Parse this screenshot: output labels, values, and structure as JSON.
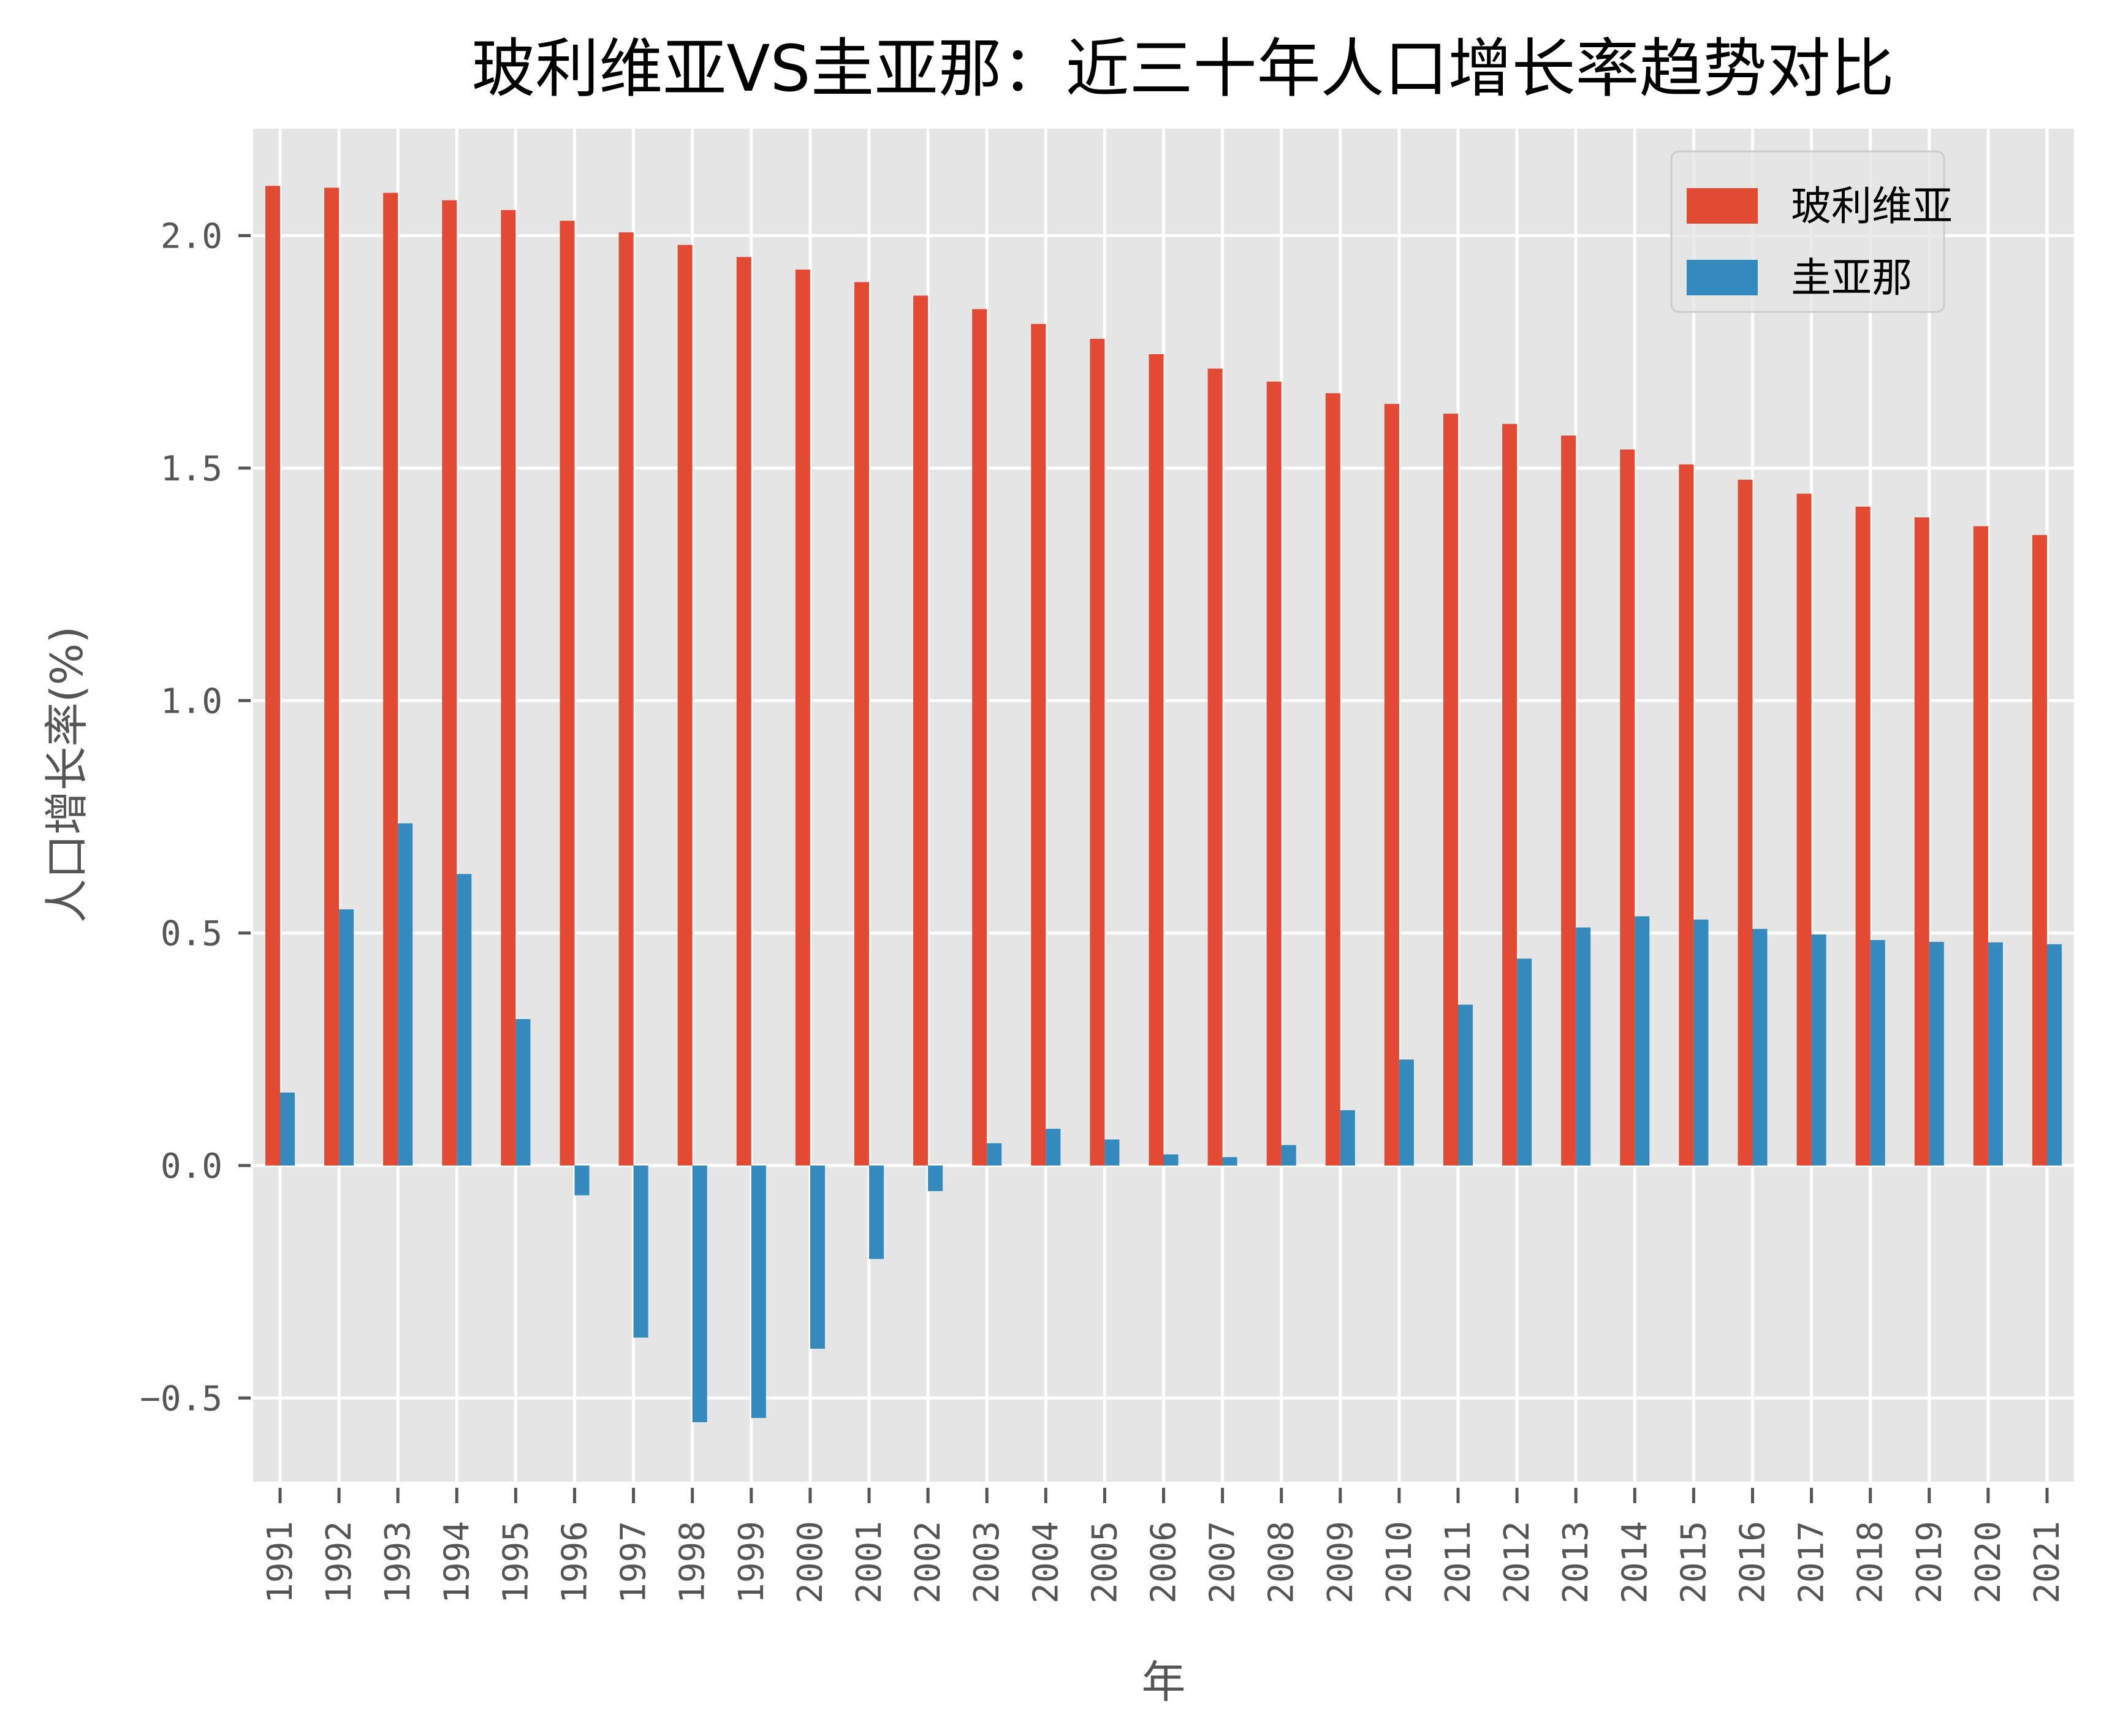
{
  "chart_data": {
    "type": "bar",
    "title": "玻利维亚VS圭亚那：近三十年人口增长率趋势对比",
    "xlabel": "年",
    "ylabel": "人口增长率(%)",
    "ylim": [
      -0.68,
      2.23
    ],
    "yticks": [
      -0.5,
      0.0,
      0.5,
      1.0,
      1.5,
      2.0
    ],
    "ytick_labels": [
      "−0.5",
      "0.0",
      "0.5",
      "1.0",
      "1.5",
      "2.0"
    ],
    "grid": true,
    "style": "ggplot",
    "legend_position": "top-right",
    "categories": [
      "1991",
      "1992",
      "1993",
      "1994",
      "1995",
      "1996",
      "1997",
      "1998",
      "1999",
      "2000",
      "2001",
      "2002",
      "2003",
      "2004",
      "2005",
      "2006",
      "2007",
      "2008",
      "2009",
      "2010",
      "2011",
      "2012",
      "2013",
      "2014",
      "2015",
      "2016",
      "2017",
      "2018",
      "2019",
      "2020",
      "2021"
    ],
    "series": [
      {
        "name": "玻利维亚",
        "color": "#E24A33",
        "values": [
          2.107,
          2.103,
          2.092,
          2.076,
          2.055,
          2.032,
          2.007,
          1.98,
          1.954,
          1.927,
          1.9,
          1.871,
          1.842,
          1.81,
          1.778,
          1.745,
          1.714,
          1.686,
          1.661,
          1.638,
          1.617,
          1.595,
          1.57,
          1.54,
          1.508,
          1.475,
          1.445,
          1.417,
          1.394,
          1.375,
          1.356
        ]
      },
      {
        "name": "圭亚那",
        "color": "#348ABD",
        "values": [
          0.157,
          0.551,
          0.736,
          0.627,
          0.315,
          -0.064,
          -0.37,
          -0.552,
          -0.543,
          -0.394,
          -0.201,
          -0.055,
          0.048,
          0.079,
          0.056,
          0.024,
          0.018,
          0.044,
          0.119,
          0.228,
          0.346,
          0.445,
          0.512,
          0.536,
          0.529,
          0.509,
          0.497,
          0.485,
          0.481,
          0.48,
          0.476
        ]
      }
    ]
  },
  "colors": {
    "plot_background": "#E5E5E5",
    "grid": "#FFFFFF",
    "tick_text": "#555555",
    "title_text": "#000000"
  }
}
